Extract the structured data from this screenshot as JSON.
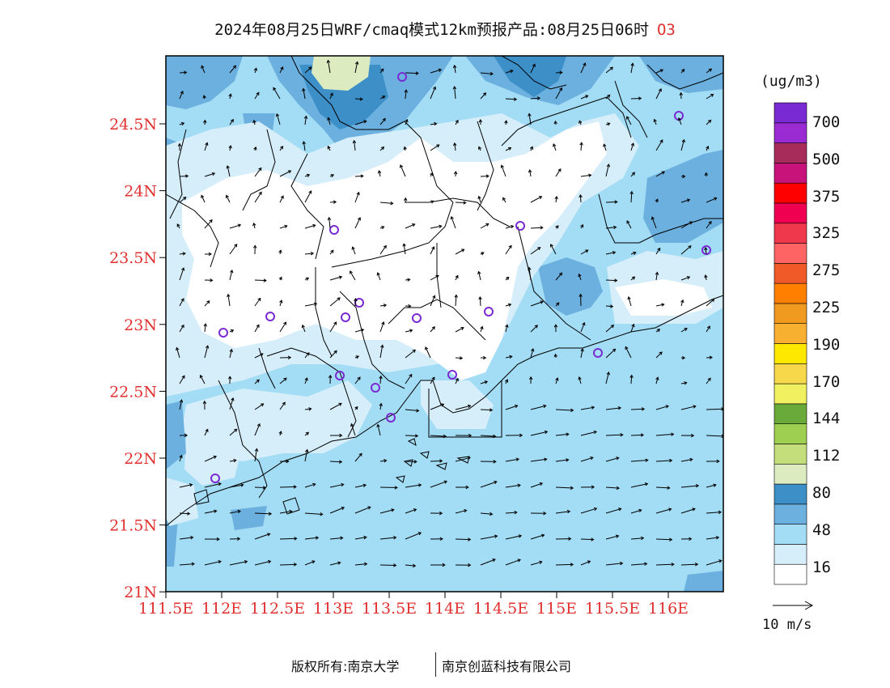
{
  "title": {
    "text": "2024年08月25日WRF/cmaq模式12km预报产品:08月25日06时",
    "species": "O3"
  },
  "axes": {
    "lat_labels": [
      "24.5N",
      "24N",
      "23.5N",
      "23N",
      "22.5N",
      "22N",
      "21.5N",
      "21N"
    ],
    "lon_labels": [
      "111.5E",
      "112E",
      "112.5E",
      "113E",
      "113.5E",
      "114E",
      "114.5E",
      "115E",
      "115.5E",
      "116E"
    ],
    "label_color": "#e03030"
  },
  "legend": {
    "unit": "(ug/m3)",
    "labels": [
      "700",
      "500",
      "375",
      "325",
      "275",
      "225",
      "190",
      "170",
      "144",
      "112",
      "80",
      "48",
      "16"
    ],
    "colors": [
      "#ffffff",
      "#d6eefa",
      "#a3dcf5",
      "#6bb0de",
      "#3d8fc8",
      "#dcebc0",
      "#c3de7a",
      "#9fcf50",
      "#6aaa3a",
      "#f0f060",
      "#f7d84a",
      "#ffe800",
      "#f8b030",
      "#f09a20",
      "#ff8000",
      "#f05a28",
      "#ff6464",
      "#f0384c",
      "#f00050",
      "#ff0000",
      "#c8147a",
      "#a82c5a",
      "#9a2ad2",
      "#7a2ad2"
    ]
  },
  "reference_vector": {
    "label": "10 m/s"
  },
  "footer": {
    "left": "版权所有:南京大学",
    "right": "南京创蓝科技有限公司"
  }
}
